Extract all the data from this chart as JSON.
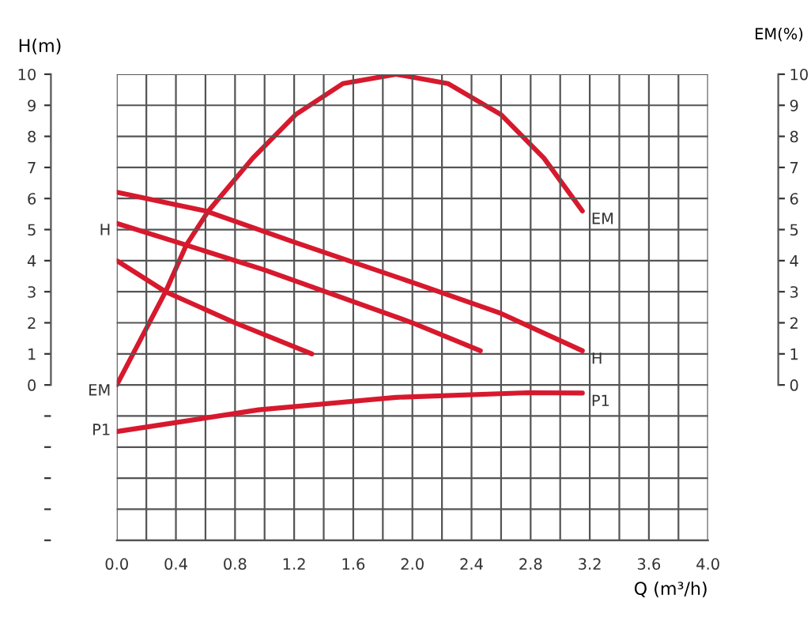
{
  "chart_data": {
    "type": "line",
    "xlabel": "Q (m³/h)",
    "ylabel": "H(m)",
    "y2label": "EM(%)",
    "xlim": [
      0,
      4.0
    ],
    "ylim": [
      -5,
      10
    ],
    "y2lim": [
      -5,
      10
    ],
    "xticks": [
      {
        "value": 0,
        "label": "0.0"
      },
      {
        "value": 0.2,
        "label": null
      },
      {
        "value": 0.4,
        "label": "0.4"
      },
      {
        "value": 0.6,
        "label": null
      },
      {
        "value": 0.8,
        "label": "0.8"
      },
      {
        "value": 1.0,
        "label": null
      },
      {
        "value": 1.2,
        "label": "1.2"
      },
      {
        "value": 1.4,
        "label": null
      },
      {
        "value": 1.6,
        "label": "1.6"
      },
      {
        "value": 1.8,
        "label": null
      },
      {
        "value": 2.0,
        "label": "2.0"
      },
      {
        "value": 2.2,
        "label": null
      },
      {
        "value": 2.4,
        "label": "2.4"
      },
      {
        "value": 2.6,
        "label": null
      },
      {
        "value": 2.8,
        "label": "2.8"
      },
      {
        "value": 3.0,
        "label": null
      },
      {
        "value": 3.2,
        "label": "3.2"
      },
      {
        "value": 3.4,
        "label": null
      },
      {
        "value": 3.6,
        "label": "3.6"
      },
      {
        "value": 3.8,
        "label": null
      },
      {
        "value": 4.0,
        "label": "4.0"
      }
    ],
    "yticks": [
      {
        "value": -5,
        "label": null
      },
      {
        "value": -4,
        "label": null
      },
      {
        "value": -3,
        "label": null
      },
      {
        "value": -2,
        "label": null
      },
      {
        "value": -1,
        "label": null
      },
      0,
      1,
      2,
      3,
      4,
      5,
      6,
      7,
      8,
      9,
      10
    ],
    "y2ticks": [
      0,
      1,
      2,
      3,
      4,
      5,
      6,
      7,
      8,
      9,
      10
    ],
    "grid": true,
    "line_style": "solid",
    "marker": "none",
    "series": [
      {
        "name": "H",
        "color": "#d7192d",
        "x": [
          0,
          0.6,
          1.2,
          2.0,
          2.6,
          3.15
        ],
        "values": [
          6.2,
          5.6,
          4.6,
          3.3,
          2.3,
          1.1
        ]
      },
      {
        "color": "#d7192d",
        "x": [
          0,
          0.47,
          1.0,
          2.0,
          2.46
        ],
        "values": [
          5.2,
          4.5,
          3.7,
          2.0,
          1.1
        ]
      },
      {
        "color": "#d7192d",
        "x": [
          0,
          0.33,
          0.8,
          1.32
        ],
        "values": [
          4.0,
          3.0,
          2.0,
          1.0
        ]
      },
      {
        "name": "EM",
        "color": "#d7192d",
        "axis": "y2",
        "x": [
          0,
          0.33,
          0.47,
          0.62,
          0.92,
          1.21,
          1.53,
          1.89,
          2.24,
          2.6,
          2.89,
          3.15
        ],
        "values": [
          0,
          3.0,
          4.5,
          5.6,
          7.3,
          8.7,
          9.7,
          10.0,
          9.7,
          8.7,
          7.3,
          5.6
        ]
      },
      {
        "name": "P1",
        "color": "#d7192d",
        "x": [
          0,
          0.96,
          1.89,
          2.78,
          3.15
        ],
        "values": [
          -1.5,
          -0.8,
          -0.4,
          -0.25,
          -0.26
        ]
      }
    ],
    "annotations": [
      "H",
      "EM",
      "P1"
    ]
  }
}
